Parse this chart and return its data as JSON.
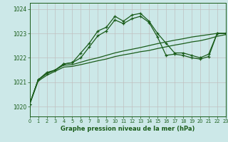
{
  "title": "Graphe pression niveau de la mer (hPa)",
  "bg_color": "#cce8e8",
  "line_color": "#1a5c1a",
  "xmin": 0,
  "xmax": 23,
  "ymin": 1019.6,
  "ymax": 1024.25,
  "yticks": [
    1020,
    1021,
    1022,
    1023,
    1024
  ],
  "xticks": [
    0,
    1,
    2,
    3,
    4,
    5,
    6,
    7,
    8,
    9,
    10,
    11,
    12,
    13,
    14,
    15,
    16,
    17,
    18,
    19,
    20,
    21,
    22,
    23
  ],
  "series1_x": [
    0,
    1,
    2,
    3,
    4,
    5,
    6,
    7,
    8,
    9,
    10,
    11,
    12,
    13,
    14,
    15,
    16,
    17,
    18,
    19,
    20,
    21,
    22,
    23
  ],
  "series1_y": [
    1020.1,
    1021.1,
    1021.4,
    1021.5,
    1021.75,
    1021.8,
    1022.2,
    1022.6,
    1023.1,
    1023.25,
    1023.7,
    1023.5,
    1023.75,
    1023.82,
    1023.5,
    1023.0,
    1022.6,
    1022.2,
    1022.2,
    1022.1,
    1022.0,
    1022.15,
    1023.0,
    1023.0
  ],
  "series2_x": [
    0,
    1,
    2,
    3,
    4,
    5,
    6,
    7,
    8,
    9,
    10,
    11,
    12,
    13,
    14,
    15,
    16,
    17,
    18,
    19,
    20,
    21,
    22,
    23
  ],
  "series2_y": [
    1020.1,
    1021.1,
    1021.35,
    1021.5,
    1021.75,
    1021.8,
    1022.0,
    1022.45,
    1022.9,
    1023.1,
    1023.55,
    1023.4,
    1023.6,
    1023.7,
    1023.45,
    1022.85,
    1022.1,
    1022.15,
    1022.1,
    1022.0,
    1021.95,
    1022.05,
    1023.0,
    1023.0
  ],
  "series3_x": [
    0,
    1,
    2,
    3,
    4,
    5,
    6,
    7,
    8,
    9,
    10,
    11,
    12,
    13,
    14,
    15,
    16,
    17,
    18,
    19,
    20,
    21,
    22,
    23
  ],
  "series3_y": [
    1020.1,
    1021.1,
    1021.35,
    1021.5,
    1021.7,
    1021.72,
    1021.82,
    1021.92,
    1022.0,
    1022.1,
    1022.2,
    1022.28,
    1022.35,
    1022.42,
    1022.5,
    1022.58,
    1022.65,
    1022.72,
    1022.78,
    1022.85,
    1022.9,
    1022.95,
    1023.0,
    1023.0
  ],
  "series4_x": [
    0,
    1,
    2,
    3,
    4,
    5,
    6,
    7,
    8,
    9,
    10,
    11,
    12,
    13,
    14,
    15,
    16,
    17,
    18,
    19,
    20,
    21,
    22,
    23
  ],
  "series4_y": [
    1020.1,
    1021.05,
    1021.28,
    1021.45,
    1021.62,
    1021.65,
    1021.72,
    1021.8,
    1021.88,
    1021.95,
    1022.05,
    1022.12,
    1022.18,
    1022.25,
    1022.3,
    1022.38,
    1022.45,
    1022.52,
    1022.58,
    1022.65,
    1022.7,
    1022.78,
    1022.88,
    1022.95
  ],
  "markers1_x": [
    0,
    1,
    2,
    3,
    4,
    5,
    6,
    7,
    8,
    9,
    10,
    11,
    12,
    13,
    14,
    15,
    16,
    17,
    18,
    19,
    20,
    21,
    22,
    23
  ],
  "markers1_y": [
    1020.1,
    1021.1,
    1021.4,
    1021.5,
    1021.75,
    1021.8,
    1022.2,
    1022.6,
    1023.1,
    1023.25,
    1023.7,
    1023.5,
    1023.75,
    1023.82,
    1023.5,
    1023.0,
    1022.6,
    1022.2,
    1022.2,
    1022.1,
    1022.0,
    1022.15,
    1023.0,
    1023.0
  ],
  "markers2_x": [
    0,
    3,
    6,
    9,
    12,
    15,
    17,
    18,
    21,
    22,
    23
  ],
  "markers2_y": [
    1020.1,
    1021.5,
    1022.0,
    1023.2,
    1023.7,
    1022.9,
    1022.2,
    1022.2,
    1022.0,
    1023.0,
    1023.0
  ]
}
